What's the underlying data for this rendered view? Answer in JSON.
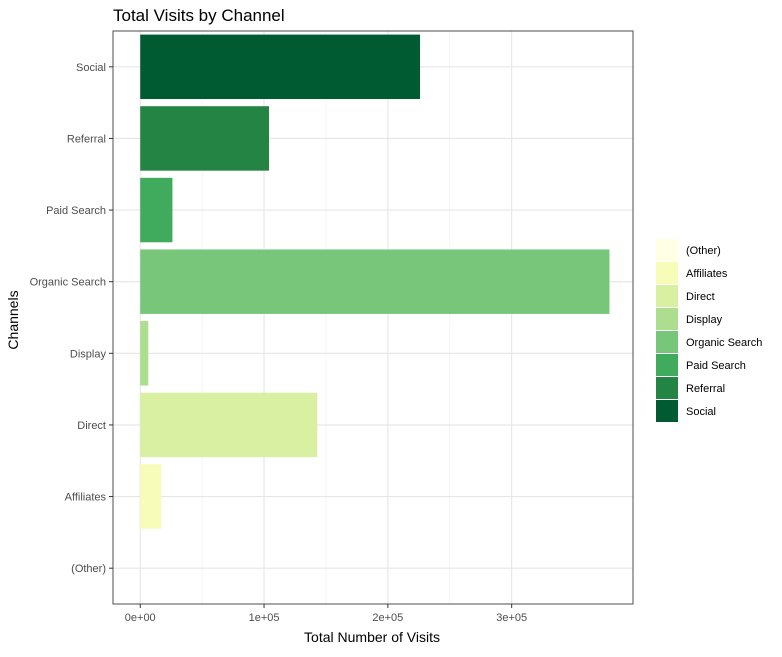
{
  "chart_data": {
    "type": "bar",
    "orientation": "horizontal",
    "title": "Total Visits by Channel",
    "xlabel": "Total Number of Visits",
    "ylabel": "Channels",
    "categories": [
      "(Other)",
      "Affiliates",
      "Direct",
      "Display",
      "Organic Search",
      "Paid Search",
      "Referral",
      "Social"
    ],
    "values": [
      0,
      17000,
      143000,
      6500,
      379000,
      26000,
      104000,
      226000
    ],
    "colors": [
      "#ffffe5",
      "#f7fcb9",
      "#d9f0a3",
      "#addd8e",
      "#78c679",
      "#41ab5d",
      "#238443",
      "#005a32"
    ],
    "xlim": [
      -22000,
      398000
    ],
    "xticks": [
      0,
      100000,
      200000,
      300000
    ],
    "xtick_labels": [
      "0e+00",
      "1e+05",
      "2e+05",
      "3e+05"
    ],
    "grid": true,
    "legend": {
      "position": "right",
      "entries": [
        "(Other)",
        "Affiliates",
        "Direct",
        "Display",
        "Organic Search",
        "Paid Search",
        "Referral",
        "Social"
      ]
    }
  }
}
